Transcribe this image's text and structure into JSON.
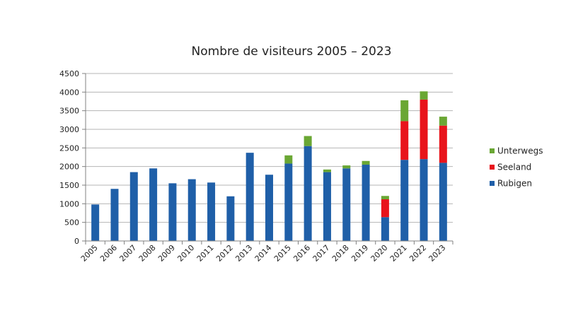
{
  "chart_data": {
    "type": "bar",
    "stacked": true,
    "title": "Nombre de visiteurs 2005 – 2023",
    "xlabel": "",
    "ylabel": "",
    "ylim": [
      0,
      4500
    ],
    "yticks": [
      0,
      500,
      1000,
      1500,
      2000,
      2500,
      3000,
      3500,
      4000,
      4500
    ],
    "grid": true,
    "legend_position": "right",
    "categories": [
      "2005",
      "2006",
      "2007",
      "2008",
      "2009",
      "2010",
      "2011",
      "2012",
      "2013",
      "2014",
      "2015",
      "2016",
      "2017",
      "2018",
      "2019",
      "2020",
      "2021",
      "2022",
      "2023"
    ],
    "series": [
      {
        "name": "Rubigen",
        "color": "#1f5fa8",
        "values": [
          980,
          1400,
          1850,
          1950,
          1550,
          1660,
          1570,
          1200,
          2370,
          1780,
          2080,
          2550,
          1850,
          1950,
          2050,
          640,
          2180,
          2200,
          2100
        ]
      },
      {
        "name": "Seeland",
        "color": "#e8141b",
        "values": [
          0,
          0,
          0,
          0,
          0,
          0,
          0,
          0,
          0,
          0,
          0,
          0,
          0,
          0,
          0,
          480,
          1040,
          1600,
          1000
        ]
      },
      {
        "name": "Unterwegs",
        "color": "#6aa734",
        "values": [
          0,
          0,
          0,
          0,
          0,
          0,
          0,
          0,
          0,
          0,
          220,
          270,
          70,
          80,
          100,
          90,
          560,
          220,
          240
        ]
      }
    ]
  }
}
